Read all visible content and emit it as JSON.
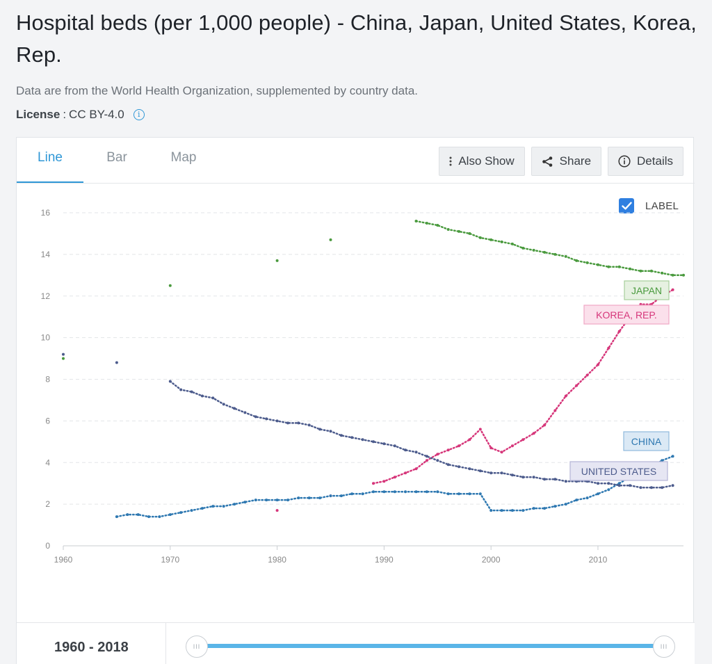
{
  "page": {
    "title": "Hospital beds (per 1,000 people) - China, Japan, United States, Korea, Rep.",
    "subtitle": "Data are from the World Health Organization, supplemented by country data.",
    "license_key": "License",
    "license_sep": ":",
    "license_value": "CC BY-4.0",
    "info_icon": "info-icon"
  },
  "tabs": [
    {
      "label": "Line",
      "active": true
    },
    {
      "label": "Bar",
      "active": false
    },
    {
      "label": "Map",
      "active": false
    }
  ],
  "toolbar": {
    "also_show": "Also Show",
    "share": "Share",
    "details": "Details"
  },
  "label_toggle": {
    "label": "LABEL",
    "checked": true
  },
  "range": {
    "label": "1960 - 2018",
    "start": 1960,
    "end": 2018
  },
  "chart_data": {
    "type": "line",
    "title": "",
    "xlabel": "",
    "ylabel": "",
    "xlim": [
      1960,
      2018
    ],
    "ylim": [
      0,
      16
    ],
    "xticks": [
      1960,
      1970,
      1980,
      1990,
      2000,
      2010
    ],
    "yticks": [
      0,
      2,
      4,
      6,
      8,
      10,
      12,
      14,
      16
    ],
    "grid": true,
    "legend": "inline-labels",
    "series": [
      {
        "name": "JAPAN",
        "color": "#4a9a3e",
        "label_bg": "#e6f1e1",
        "label_border": "#a7cf9b",
        "points": [
          [
            1960,
            9.0
          ],
          [
            1970,
            12.5
          ],
          [
            1980,
            13.7
          ],
          [
            1985,
            14.7
          ],
          [
            1993,
            15.6
          ],
          [
            1994,
            15.5
          ],
          [
            1995,
            15.4
          ],
          [
            1996,
            15.2
          ],
          [
            1997,
            15.1
          ],
          [
            1998,
            15.0
          ],
          [
            1999,
            14.8
          ],
          [
            2000,
            14.7
          ],
          [
            2001,
            14.6
          ],
          [
            2002,
            14.5
          ],
          [
            2003,
            14.3
          ],
          [
            2004,
            14.2
          ],
          [
            2005,
            14.1
          ],
          [
            2006,
            14.0
          ],
          [
            2007,
            13.9
          ],
          [
            2008,
            13.7
          ],
          [
            2009,
            13.6
          ],
          [
            2010,
            13.5
          ],
          [
            2011,
            13.4
          ],
          [
            2012,
            13.4
          ],
          [
            2013,
            13.3
          ],
          [
            2014,
            13.2
          ],
          [
            2015,
            13.2
          ],
          [
            2016,
            13.1
          ],
          [
            2017,
            13.0
          ],
          [
            2018,
            13.0
          ]
        ]
      },
      {
        "name": "KOREA, REP.",
        "color": "#d6367a",
        "label_bg": "#fbe0eb",
        "label_border": "#efa8c5",
        "points": [
          [
            1980,
            1.7
          ],
          [
            1985,
            2.4
          ],
          [
            1989,
            3.0
          ],
          [
            1990,
            3.1
          ],
          [
            1991,
            3.3
          ],
          [
            1992,
            3.5
          ],
          [
            1993,
            3.7
          ],
          [
            1994,
            4.1
          ],
          [
            1995,
            4.4
          ],
          [
            1996,
            4.6
          ],
          [
            1997,
            4.8
          ],
          [
            1998,
            5.1
          ],
          [
            1999,
            5.6
          ],
          [
            2000,
            4.7
          ],
          [
            2001,
            4.5
          ],
          [
            2002,
            4.8
          ],
          [
            2003,
            5.1
          ],
          [
            2004,
            5.4
          ],
          [
            2005,
            5.8
          ],
          [
            2006,
            6.5
          ],
          [
            2007,
            7.2
          ],
          [
            2008,
            7.7
          ],
          [
            2009,
            8.2
          ],
          [
            2010,
            8.7
          ],
          [
            2011,
            9.5
          ],
          [
            2012,
            10.3
          ],
          [
            2013,
            11.0
          ],
          [
            2014,
            11.6
          ],
          [
            2015,
            11.6
          ],
          [
            2016,
            12.0
          ],
          [
            2017,
            12.3
          ]
        ]
      },
      {
        "name": "CHINA",
        "color": "#2e78b1",
        "label_bg": "#dbe9f5",
        "label_border": "#8fb9dd",
        "points": [
          [
            1965,
            1.4
          ],
          [
            1966,
            1.5
          ],
          [
            1967,
            1.5
          ],
          [
            1968,
            1.4
          ],
          [
            1969,
            1.4
          ],
          [
            1970,
            1.5
          ],
          [
            1971,
            1.6
          ],
          [
            1972,
            1.7
          ],
          [
            1973,
            1.8
          ],
          [
            1974,
            1.9
          ],
          [
            1975,
            1.9
          ],
          [
            1976,
            2.0
          ],
          [
            1977,
            2.1
          ],
          [
            1978,
            2.2
          ],
          [
            1979,
            2.2
          ],
          [
            1980,
            2.2
          ],
          [
            1981,
            2.2
          ],
          [
            1982,
            2.3
          ],
          [
            1983,
            2.3
          ],
          [
            1984,
            2.3
          ],
          [
            1985,
            2.4
          ],
          [
            1986,
            2.4
          ],
          [
            1987,
            2.5
          ],
          [
            1988,
            2.5
          ],
          [
            1989,
            2.6
          ],
          [
            1990,
            2.6
          ],
          [
            1991,
            2.6
          ],
          [
            1992,
            2.6
          ],
          [
            1993,
            2.6
          ],
          [
            1994,
            2.6
          ],
          [
            1995,
            2.6
          ],
          [
            1996,
            2.5
          ],
          [
            1997,
            2.5
          ],
          [
            1998,
            2.5
          ],
          [
            1999,
            2.5
          ],
          [
            2000,
            1.7
          ],
          [
            2001,
            1.7
          ],
          [
            2002,
            1.7
          ],
          [
            2003,
            1.7
          ],
          [
            2004,
            1.8
          ],
          [
            2005,
            1.8
          ],
          [
            2006,
            1.9
          ],
          [
            2007,
            2.0
          ],
          [
            2008,
            2.2
          ],
          [
            2009,
            2.3
          ],
          [
            2010,
            2.5
          ],
          [
            2011,
            2.7
          ],
          [
            2012,
            3.0
          ],
          [
            2013,
            3.3
          ],
          [
            2014,
            3.6
          ],
          [
            2015,
            3.8
          ],
          [
            2016,
            4.1
          ],
          [
            2017,
            4.3
          ]
        ]
      },
      {
        "name": "UNITED STATES",
        "color": "#4c5b8c",
        "label_bg": "#e6e6f3",
        "label_border": "#b3b4d6",
        "points": [
          [
            1960,
            9.2
          ],
          [
            1965,
            8.8
          ],
          [
            1970,
            7.9
          ],
          [
            1971,
            7.5
          ],
          [
            1972,
            7.4
          ],
          [
            1973,
            7.2
          ],
          [
            1974,
            7.1
          ],
          [
            1975,
            6.8
          ],
          [
            1976,
            6.6
          ],
          [
            1977,
            6.4
          ],
          [
            1978,
            6.2
          ],
          [
            1979,
            6.1
          ],
          [
            1980,
            6.0
          ],
          [
            1981,
            5.9
          ],
          [
            1982,
            5.9
          ],
          [
            1983,
            5.8
          ],
          [
            1984,
            5.6
          ],
          [
            1985,
            5.5
          ],
          [
            1986,
            5.3
          ],
          [
            1987,
            5.2
          ],
          [
            1988,
            5.1
          ],
          [
            1989,
            5.0
          ],
          [
            1990,
            4.9
          ],
          [
            1991,
            4.8
          ],
          [
            1992,
            4.6
          ],
          [
            1993,
            4.5
          ],
          [
            1994,
            4.3
          ],
          [
            1995,
            4.1
          ],
          [
            1996,
            3.9
          ],
          [
            1997,
            3.8
          ],
          [
            1998,
            3.7
          ],
          [
            1999,
            3.6
          ],
          [
            2000,
            3.5
          ],
          [
            2001,
            3.5
          ],
          [
            2002,
            3.4
          ],
          [
            2003,
            3.3
          ],
          [
            2004,
            3.3
          ],
          [
            2005,
            3.2
          ],
          [
            2006,
            3.2
          ],
          [
            2007,
            3.1
          ],
          [
            2008,
            3.1
          ],
          [
            2009,
            3.1
          ],
          [
            2010,
            3.0
          ],
          [
            2011,
            3.0
          ],
          [
            2012,
            2.9
          ],
          [
            2013,
            2.9
          ],
          [
            2014,
            2.8
          ],
          [
            2015,
            2.8
          ],
          [
            2016,
            2.8
          ],
          [
            2017,
            2.9
          ]
        ]
      }
    ]
  }
}
